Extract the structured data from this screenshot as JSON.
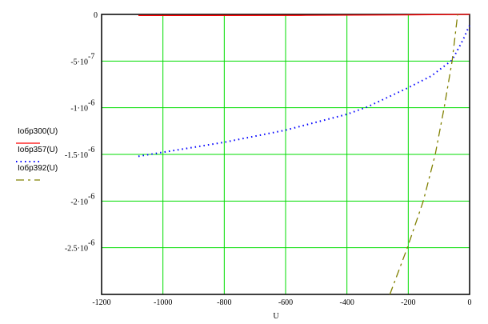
{
  "chart_data": {
    "type": "line",
    "xlabel": "U",
    "ylabel": "",
    "xlim": [
      -1200,
      0
    ],
    "ylim": [
      -3e-06,
      0
    ],
    "grid": true,
    "legend_placement": "left",
    "xticks": [
      -1200,
      -1000,
      -800,
      -600,
      -400,
      -200,
      0
    ],
    "xtick_labels": [
      "-1200",
      "-1000",
      "-800",
      "-600",
      "-400",
      "-200",
      "0"
    ],
    "yticks": [
      0,
      -5e-07,
      -1e-06,
      -1.5e-06,
      -2e-06,
      -2.5e-06
    ],
    "ytick_labels": [
      {
        "m": "0",
        "e": ""
      },
      {
        "m": "-5·10",
        "e": "-7"
      },
      {
        "m": "-1·10",
        "e": "-6"
      },
      {
        "m": "-1.5·10",
        "e": "-6"
      },
      {
        "m": "-2·10",
        "e": "-6"
      },
      {
        "m": "-2.5·10",
        "e": "-6"
      }
    ],
    "series": [
      {
        "name": "Iобр300(U)",
        "color": "#ff0000",
        "style": "solid",
        "x": [
          -1080,
          -550,
          -200,
          0
        ],
        "y": [
          -1.2e-08,
          -1e-08,
          -5e-09,
          0
        ]
      },
      {
        "name": "Iобр357(U)",
        "color": "#0000ff",
        "style": "dotted",
        "x": [
          -1080,
          -800,
          -600,
          -400,
          -333,
          -203,
          -125,
          -57,
          -21,
          -5,
          0
        ],
        "y": [
          -1.52e-06,
          -1.37e-06,
          -1.24e-06,
          -1.07e-06,
          -9.9e-07,
          -7.9e-07,
          -6.6e-07,
          -4.9e-07,
          -2.7e-07,
          -1.5e-07,
          -1.2e-07
        ]
      },
      {
        "name": "Iобр392(U)",
        "color": "#808000",
        "style": "dashed",
        "x": [
          -260,
          -203,
          -151,
          -112,
          -83,
          -57,
          -39
        ],
        "y": [
          -3e-06,
          -2.5e-06,
          -2e-06,
          -1.5e-06,
          -1e-06,
          -5e-07,
          0
        ]
      }
    ]
  }
}
